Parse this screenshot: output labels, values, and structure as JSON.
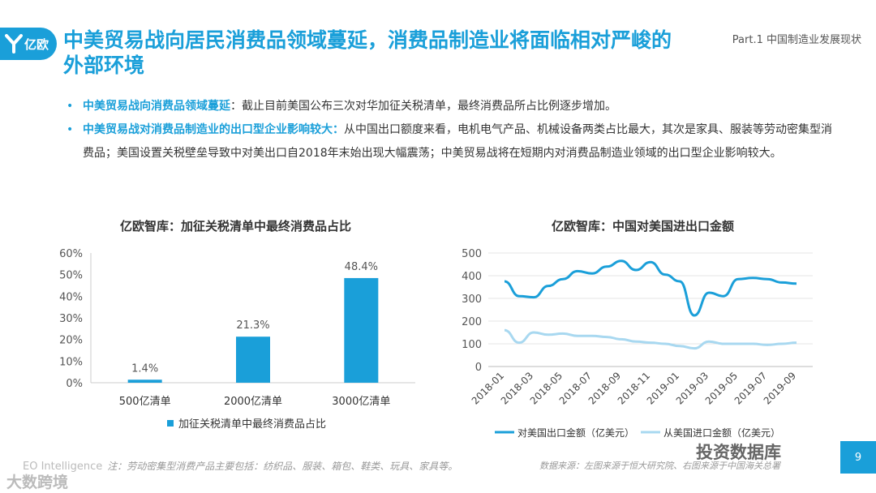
{
  "header": {
    "logo_text": "亿欧",
    "title": "中美贸易战向居民消费品领域蔓延，消费品制造业将面临相对严峻的外部环境",
    "part": "Part.1 中国制造业发展现状"
  },
  "bullets": [
    {
      "highlight": "中美贸易战向消费品领域蔓延",
      "text": "：截止目前美国公布三次对华加征关税清单，最终消费品所占比例逐步增加。"
    },
    {
      "highlight": "中美贸易战对消费品制造业的出口型企业影响较大：",
      "text": "从中国出口额度来看，电机电气产品、机械设备两类占比最大，其次是家具、服装等劳动密集型消费品；美国设置关税壁垒导致中对美出口自2018年末始出现大幅震荡；中美贸易战将在短期内对消费品制造业领域的出口型企业影响较大。"
    }
  ],
  "chart_data": [
    {
      "type": "bar",
      "title": "亿欧智库：加征关税清单中最终消费品占比",
      "categories": [
        "500亿清单",
        "2000亿清单",
        "3000亿清单"
      ],
      "values": [
        1.4,
        21.3,
        48.4
      ],
      "value_labels": [
        "1.4%",
        "21.3%",
        "48.4%"
      ],
      "yticks": [
        "0%",
        "10%",
        "20%",
        "30%",
        "40%",
        "50%",
        "60%"
      ],
      "ylim": [
        0,
        60
      ],
      "legend": "加征关税清单中最终消费品占比",
      "color": "#1a9fd9"
    },
    {
      "type": "line",
      "title": "亿欧智库：中国对美国进出口金额",
      "x": [
        "2018-01",
        "2018-02",
        "2018-03",
        "2018-04",
        "2018-05",
        "2018-06",
        "2018-07",
        "2018-08",
        "2018-09",
        "2018-10",
        "2018-11",
        "2018-12",
        "2019-01",
        "2019-02",
        "2019-03",
        "2019-04",
        "2019-05",
        "2019-06",
        "2019-07",
        "2019-08",
        "2019-09"
      ],
      "xticks": [
        "2018-01",
        "2018-03",
        "2018-05",
        "2018-07",
        "2018-09",
        "2018-11",
        "2019-01",
        "2019-03",
        "2019-05",
        "2019-07",
        "2019-09"
      ],
      "yticks": [
        "0",
        "100",
        "200",
        "300",
        "400",
        "500"
      ],
      "ylim": [
        0,
        500
      ],
      "series": [
        {
          "name": "对美国出口金额（亿美元）",
          "color": "#1a9fd9",
          "values": [
            375,
            310,
            305,
            355,
            385,
            420,
            410,
            440,
            465,
            425,
            460,
            405,
            375,
            225,
            325,
            310,
            385,
            390,
            385,
            370,
            365
          ]
        },
        {
          "name": "从美国进口金额（亿美元）",
          "color": "#a8d8f0",
          "values": [
            160,
            105,
            150,
            140,
            145,
            135,
            135,
            130,
            120,
            110,
            105,
            100,
            90,
            80,
            110,
            100,
            100,
            100,
            95,
            100,
            105
          ]
        }
      ]
    }
  ],
  "footer": {
    "left_brand": "EO Intelligence",
    "left_note": "注：劳动密集型消费产品主要包括：纺织品、服装、箱包、鞋类、玩具、家具等。",
    "right_note": "数据来源：左图来源于恒大研究院、右图来源于中国海关总署",
    "watermark_left": "大数跨境",
    "watermark_right": "投资数据库",
    "page": "9"
  }
}
